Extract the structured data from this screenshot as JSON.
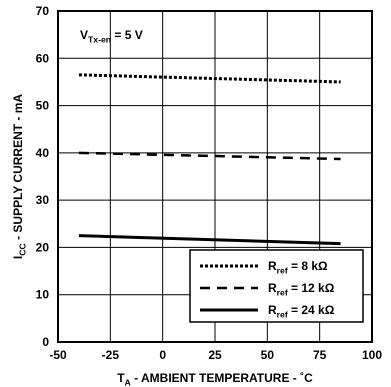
{
  "chart_data": {
    "type": "line",
    "title": "",
    "annotation": {
      "main": "V",
      "sub": "Tx-en",
      "rest": " = 5 V"
    },
    "xlabel": {
      "main": "T",
      "sub": "A",
      "rest": " - AMBIENT TEMPERATURE - ˚C"
    },
    "ylabel": {
      "main": "I",
      "sub": "CC",
      "rest": " - SUPPLY CURRENT  - mA"
    },
    "xlim": [
      -50,
      100
    ],
    "ylim": [
      0,
      70
    ],
    "xticks": [
      "-50",
      "-25",
      "0",
      "25",
      "50",
      "75",
      "100"
    ],
    "yticks": [
      "0",
      "10",
      "20",
      "30",
      "40",
      "50",
      "60",
      "70"
    ],
    "grid": true,
    "legend_position": "bottom-right",
    "series": [
      {
        "name_main": "R",
        "name_sub": "ref",
        "name_rest": " = 8 kΩ",
        "style": "dotted",
        "x": [
          -40,
          85
        ],
        "y": [
          56.5,
          55.0
        ]
      },
      {
        "name_main": "R",
        "name_sub": "ref",
        "name_rest": " = 12 kΩ",
        "style": "dashed",
        "x": [
          -40,
          85
        ],
        "y": [
          40.0,
          38.7
        ]
      },
      {
        "name_main": "R",
        "name_sub": "ref",
        "name_rest": " = 24 kΩ",
        "style": "solid",
        "x": [
          -40,
          85
        ],
        "y": [
          22.5,
          20.8
        ]
      }
    ]
  }
}
